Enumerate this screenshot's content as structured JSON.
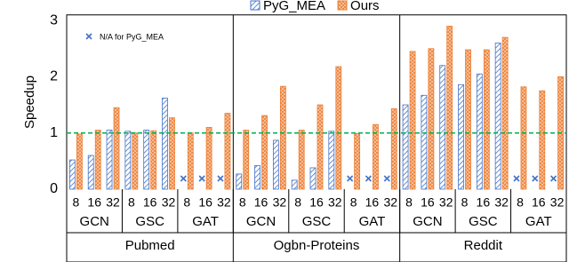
{
  "chart_data": {
    "type": "bar",
    "y_label": "Speedup",
    "categories": [
      "8",
      "16",
      "32",
      "8",
      "16",
      "32",
      "8",
      "16",
      "32",
      "8",
      "16",
      "32",
      "8",
      "16",
      "32",
      "8",
      "16",
      "32",
      "8",
      "16",
      "32",
      "8",
      "16",
      "32",
      "8",
      "16",
      "32"
    ],
    "model_groups": [
      "GCN",
      "GSC",
      "GAT",
      "GCN",
      "GSC",
      "GAT",
      "GCN",
      "GSC",
      "GAT"
    ],
    "dataset_groups": [
      "Pubmed",
      "Ogbn-Proteins",
      "Reddit"
    ],
    "series": [
      {
        "name": "PyG_MEA",
        "color": "#4472c4",
        "values": [
          0.52,
          0.6,
          1.05,
          1.03,
          1.05,
          1.62,
          null,
          null,
          null,
          0.27,
          0.42,
          0.87,
          0.16,
          0.38,
          1.03,
          null,
          null,
          null,
          1.5,
          1.67,
          2.2,
          1.86,
          2.05,
          2.6,
          null,
          null,
          null
        ]
      },
      {
        "name": "Ours",
        "color": "#ed7d31",
        "values": [
          0.98,
          1.05,
          1.45,
          1.0,
          1.04,
          1.27,
          1.0,
          1.1,
          1.35,
          1.05,
          1.31,
          1.83,
          1.05,
          1.5,
          2.18,
          0.99,
          1.15,
          1.43,
          2.45,
          2.5,
          2.9,
          2.48,
          2.48,
          2.7,
          1.82,
          1.75,
          2.0
        ]
      }
    ],
    "ylim": [
      0,
      3.1
    ],
    "yticks": [
      0,
      1,
      2,
      3
    ],
    "reference_line": {
      "value": 1,
      "color": "#00b050"
    },
    "annotation": "N/A for PyG_MEA",
    "legend": "top"
  }
}
